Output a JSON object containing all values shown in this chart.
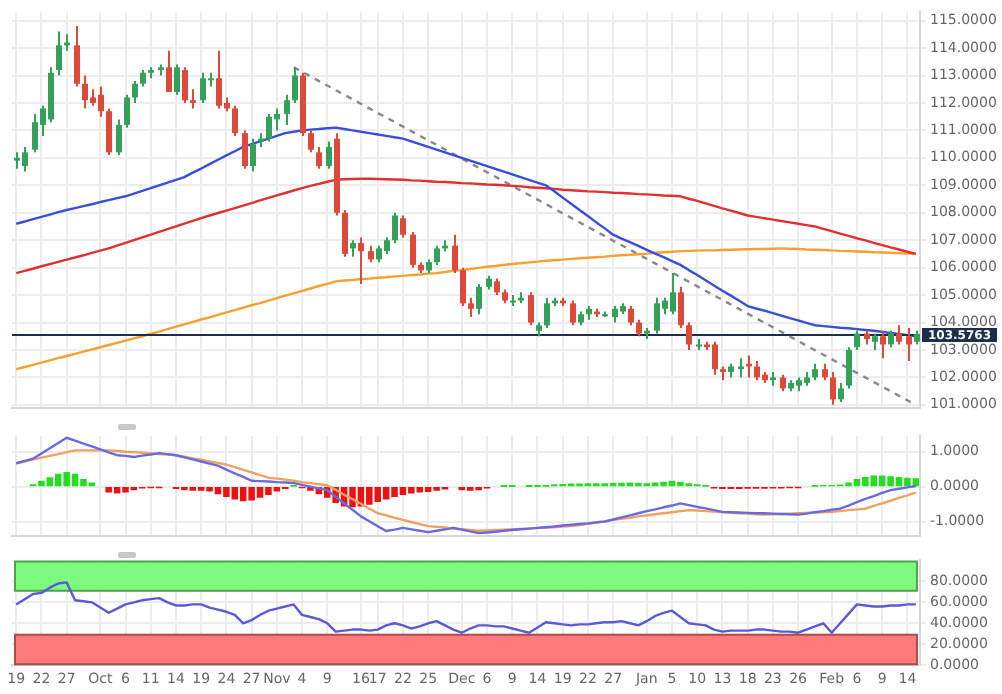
{
  "chart_data": [
    {
      "type": "candlestick",
      "categories": [
        null,
        null,
        null,
        null,
        null,
        null,
        null,
        null,
        null,
        null,
        null,
        null,
        null,
        null,
        null,
        null,
        null,
        null,
        null,
        null,
        null,
        null,
        null,
        null,
        null,
        null,
        null,
        null,
        null,
        null,
        null,
        null,
        null,
        null,
        null,
        null,
        null,
        null,
        null,
        null,
        null,
        null,
        null,
        null,
        null,
        null,
        null,
        null,
        null,
        null,
        null,
        null,
        null,
        null,
        null,
        null,
        null,
        null,
        null,
        null,
        null,
        null,
        null,
        null,
        null,
        null,
        null,
        null,
        null,
        null,
        null,
        null,
        null,
        null,
        null,
        null,
        null,
        null,
        null,
        null,
        null,
        null,
        null,
        null,
        null,
        null,
        null,
        null,
        null,
        null,
        null,
        null,
        null,
        null,
        null,
        null,
        null,
        null,
        null,
        null,
        null,
        null,
        null,
        null,
        null,
        null,
        null,
        null
      ],
      "ohlc": [
        [
          109.9,
          110.2,
          109.6,
          110.0
        ],
        [
          109.7,
          110.4,
          109.5,
          110.2
        ],
        [
          110.3,
          111.6,
          110.2,
          111.3
        ],
        [
          111.2,
          111.9,
          110.8,
          111.8
        ],
        [
          111.4,
          113.3,
          111.3,
          113.1
        ],
        [
          113.2,
          114.6,
          113.0,
          114.1
        ],
        [
          114.1,
          114.5,
          113.9,
          114.2
        ],
        [
          114.1,
          114.8,
          112.6,
          112.7
        ],
        [
          112.7,
          113.0,
          111.8,
          112.1
        ],
        [
          112.2,
          112.5,
          111.9,
          112.0
        ],
        [
          112.3,
          112.6,
          111.5,
          111.7
        ],
        [
          111.7,
          111.8,
          110.1,
          110.2
        ],
        [
          110.2,
          111.4,
          110.1,
          111.2
        ],
        [
          111.2,
          112.3,
          111.1,
          112.2
        ],
        [
          112.2,
          112.8,
          112.0,
          112.7
        ],
        [
          112.7,
          113.2,
          112.6,
          113.1
        ],
        [
          113.1,
          113.3,
          112.9,
          113.2
        ],
        [
          113.2,
          113.4,
          113.0,
          113.3
        ],
        [
          113.3,
          113.9,
          112.4,
          112.4
        ],
        [
          112.4,
          113.4,
          112.3,
          113.3
        ],
        [
          113.2,
          113.3,
          112.0,
          112.1
        ],
        [
          112.1,
          112.5,
          111.8,
          112.0
        ],
        [
          112.1,
          113.1,
          112.0,
          112.9
        ],
        [
          112.9,
          113.1,
          112.6,
          112.9
        ],
        [
          112.9,
          113.9,
          111.8,
          111.9
        ],
        [
          112.0,
          112.2,
          111.7,
          111.8
        ],
        [
          111.8,
          111.9,
          110.8,
          110.9
        ],
        [
          110.9,
          111.0,
          109.6,
          109.7
        ],
        [
          109.7,
          110.7,
          109.5,
          110.5
        ],
        [
          110.6,
          110.9,
          110.4,
          110.7
        ],
        [
          110.7,
          111.6,
          110.6,
          111.5
        ],
        [
          111.4,
          111.8,
          111.0,
          111.6
        ],
        [
          111.6,
          112.3,
          111.2,
          112.1
        ],
        [
          112.1,
          113.3,
          112.0,
          113.0
        ],
        [
          113.0,
          113.1,
          110.8,
          110.9
        ],
        [
          110.9,
          111.0,
          110.2,
          110.3
        ],
        [
          110.2,
          110.4,
          109.6,
          109.7
        ],
        [
          109.7,
          110.6,
          109.6,
          110.4
        ],
        [
          110.7,
          110.9,
          107.9,
          108.0
        ],
        [
          108.0,
          108.1,
          106.4,
          106.5
        ],
        [
          106.7,
          107.0,
          106.4,
          106.9
        ],
        [
          106.9,
          107.1,
          105.4,
          106.6
        ],
        [
          106.6,
          106.8,
          106.2,
          106.3
        ],
        [
          106.3,
          106.8,
          106.2,
          106.7
        ],
        [
          106.6,
          107.1,
          106.5,
          107.0
        ],
        [
          107.0,
          108.0,
          106.9,
          107.9
        ],
        [
          107.8,
          107.9,
          107.1,
          107.2
        ],
        [
          107.2,
          107.3,
          106.0,
          106.1
        ],
        [
          106.1,
          106.2,
          105.8,
          105.9
        ],
        [
          105.9,
          106.3,
          105.8,
          106.2
        ],
        [
          106.2,
          106.8,
          106.1,
          106.7
        ],
        [
          106.7,
          107.0,
          106.6,
          106.8
        ],
        [
          106.8,
          107.2,
          105.8,
          105.9
        ],
        [
          105.9,
          106.0,
          104.6,
          104.7
        ],
        [
          104.7,
          104.9,
          104.2,
          104.5
        ],
        [
          104.5,
          105.4,
          104.3,
          105.3
        ],
        [
          105.3,
          105.7,
          105.2,
          105.6
        ],
        [
          105.5,
          105.6,
          105.0,
          105.1
        ],
        [
          105.1,
          105.2,
          104.7,
          104.8
        ],
        [
          104.8,
          105.0,
          104.6,
          104.8
        ],
        [
          104.8,
          105.1,
          104.7,
          104.9
        ],
        [
          105.0,
          105.1,
          103.9,
          104.0
        ],
        [
          103.7,
          104.0,
          103.5,
          103.9
        ],
        [
          103.9,
          104.9,
          103.8,
          104.7
        ],
        [
          104.7,
          104.9,
          104.6,
          104.8
        ],
        [
          104.8,
          104.9,
          104.6,
          104.7
        ],
        [
          104.7,
          104.8,
          103.9,
          104.0
        ],
        [
          104.0,
          104.4,
          103.9,
          104.3
        ],
        [
          104.3,
          104.6,
          104.1,
          104.5
        ],
        [
          104.4,
          104.5,
          104.2,
          104.3
        ],
        [
          104.3,
          104.4,
          104.2,
          104.3
        ],
        [
          104.2,
          104.6,
          104.0,
          104.5
        ],
        [
          104.4,
          104.7,
          104.3,
          104.6
        ],
        [
          104.5,
          104.6,
          103.9,
          104.0
        ],
        [
          104.0,
          104.1,
          103.5,
          103.6
        ],
        [
          103.6,
          103.8,
          103.4,
          103.7
        ],
        [
          103.7,
          104.9,
          103.6,
          104.7
        ],
        [
          104.5,
          104.9,
          104.3,
          104.8
        ],
        [
          104.4,
          105.8,
          104.3,
          105.1
        ],
        [
          105.1,
          105.3,
          103.8,
          103.9
        ],
        [
          103.9,
          104.0,
          103.0,
          103.2
        ],
        [
          103.2,
          103.4,
          103.0,
          103.2
        ],
        [
          103.2,
          103.3,
          103.0,
          103.1
        ],
        [
          103.2,
          103.3,
          102.1,
          102.3
        ],
        [
          102.3,
          102.4,
          101.9,
          102.2
        ],
        [
          102.2,
          102.5,
          102.0,
          102.4
        ],
        [
          102.3,
          102.7,
          102.0,
          102.4
        ],
        [
          102.5,
          102.8,
          102.0,
          102.4
        ],
        [
          102.4,
          102.6,
          101.9,
          102.0
        ],
        [
          102.1,
          102.2,
          101.8,
          101.9
        ],
        [
          101.9,
          102.2,
          101.7,
          102.0
        ],
        [
          102.0,
          102.1,
          101.5,
          101.6
        ],
        [
          101.6,
          101.9,
          101.5,
          101.8
        ],
        [
          101.7,
          102.0,
          101.5,
          101.9
        ],
        [
          101.8,
          102.2,
          101.7,
          102.0
        ],
        [
          102.0,
          102.5,
          101.9,
          102.3
        ],
        [
          102.3,
          102.5,
          101.9,
          102.0
        ],
        [
          102.0,
          102.2,
          101.0,
          101.2
        ],
        [
          101.2,
          101.8,
          101.1,
          101.6
        ],
        [
          101.7,
          103.1,
          101.6,
          103.0
        ],
        [
          103.1,
          103.7,
          103.0,
          103.6
        ],
        [
          103.6,
          103.7,
          103.2,
          103.4
        ],
        [
          103.3,
          103.6,
          103.0,
          103.5
        ],
        [
          103.5,
          103.7,
          102.7,
          103.2
        ],
        [
          103.2,
          103.7,
          103.1,
          103.6
        ],
        [
          103.6,
          103.9,
          103.2,
          103.3
        ],
        [
          103.5,
          103.8,
          102.6,
          103.2
        ],
        [
          103.3,
          103.7,
          103.2,
          103.5763
        ]
      ],
      "series": [
        {
          "type": "line",
          "color": "#3a4fd8",
          "values": [
            107.6,
            107.68,
            107.77,
            107.85,
            107.93,
            108.02,
            108.1,
            108.17,
            108.24,
            108.31,
            108.39,
            108.46,
            108.53,
            108.6,
            108.7,
            108.8,
            108.9,
            109.0,
            109.1,
            109.2,
            109.3,
            109.46,
            109.61,
            109.77,
            109.93,
            110.09,
            110.24,
            110.4,
            110.5,
            110.6,
            110.7,
            110.8,
            110.9,
            110.95,
            111.0,
            111.03,
            111.05,
            111.08,
            111.1,
            111.05,
            111.0,
            110.95,
            110.9,
            110.85,
            110.8,
            110.75,
            110.7,
            110.6,
            110.5,
            110.4,
            110.3,
            110.2,
            110.1,
            110.0,
            109.9,
            109.8,
            109.7,
            109.6,
            109.5,
            109.4,
            109.3,
            109.2,
            109.1,
            109.0,
            108.78,
            108.55,
            108.33,
            108.1,
            107.88,
            107.65,
            107.43,
            107.2,
            107.06,
            106.93,
            106.79,
            106.65,
            106.51,
            106.38,
            106.24,
            106.1,
            105.91,
            105.73,
            105.54,
            105.35,
            105.16,
            104.98,
            104.79,
            104.6,
            104.51,
            104.43,
            104.34,
            104.25,
            104.16,
            104.08,
            103.99,
            103.9,
            103.87,
            103.84,
            103.81,
            103.79,
            103.76,
            103.73,
            103.7,
            103.66,
            103.62,
            103.58,
            103.54,
            103.5
          ]
        },
        {
          "type": "line",
          "color": "#e03030",
          "values": [
            105.8,
            105.88,
            105.96,
            106.05,
            106.13,
            106.21,
            106.29,
            106.37,
            106.45,
            106.54,
            106.62,
            106.7,
            106.8,
            106.9,
            107.0,
            107.1,
            107.2,
            107.3,
            107.4,
            107.5,
            107.6,
            107.7,
            107.8,
            107.9,
            107.99,
            108.08,
            108.17,
            108.26,
            108.35,
            108.45,
            108.54,
            108.63,
            108.72,
            108.81,
            108.9,
            108.98,
            109.05,
            109.13,
            109.2,
            109.22,
            109.23,
            109.24,
            109.24,
            109.23,
            109.22,
            109.21,
            109.2,
            109.18,
            109.17,
            109.15,
            109.13,
            109.12,
            109.1,
            109.08,
            109.07,
            109.05,
            109.03,
            109.02,
            109.0,
            108.98,
            108.96,
            108.93,
            108.91,
            108.89,
            108.87,
            108.84,
            108.82,
            108.8,
            108.78,
            108.77,
            108.75,
            108.73,
            108.72,
            108.7,
            108.68,
            108.67,
            108.65,
            108.63,
            108.62,
            108.6,
            108.51,
            108.43,
            108.34,
            108.25,
            108.16,
            108.08,
            107.99,
            107.9,
            107.85,
            107.8,
            107.75,
            107.7,
            107.65,
            107.6,
            107.55,
            107.5,
            107.41,
            107.33,
            107.24,
            107.16,
            107.07,
            106.99,
            106.9,
            106.82,
            106.74,
            106.66,
            106.58,
            106.5
          ]
        },
        {
          "type": "line",
          "color": "#f5a030",
          "values": [
            102.3,
            102.38,
            102.46,
            102.54,
            102.62,
            102.7,
            102.78,
            102.86,
            102.94,
            103.02,
            103.1,
            103.18,
            103.26,
            103.34,
            103.42,
            103.5,
            103.59,
            103.67,
            103.76,
            103.85,
            103.93,
            104.02,
            104.11,
            104.19,
            104.28,
            104.37,
            104.45,
            104.54,
            104.63,
            104.71,
            104.8,
            104.89,
            104.98,
            105.06,
            105.15,
            105.24,
            105.33,
            105.41,
            105.5,
            105.53,
            105.55,
            105.58,
            105.6,
            105.63,
            105.65,
            105.68,
            105.7,
            105.73,
            105.75,
            105.78,
            105.8,
            105.84,
            105.88,
            105.91,
            105.95,
            105.99,
            106.03,
            106.06,
            106.1,
            106.13,
            106.16,
            106.19,
            106.22,
            106.25,
            106.27,
            106.29,
            106.32,
            106.34,
            106.36,
            106.38,
            106.4,
            106.43,
            106.45,
            106.47,
            106.49,
            106.51,
            106.54,
            106.56,
            106.58,
            106.6,
            106.61,
            106.62,
            106.63,
            106.63,
            106.64,
            106.65,
            106.66,
            106.67,
            106.68,
            106.68,
            106.69,
            106.7,
            106.69,
            106.68,
            106.66,
            106.65,
            106.64,
            106.63,
            106.61,
            106.6,
            106.59,
            106.58,
            106.56,
            106.55,
            106.54,
            106.53,
            106.51,
            106.5
          ]
        },
        {
          "type": "line",
          "color": "#888888",
          "line_style": "dashed",
          "values": [
            null,
            null,
            null,
            null,
            null,
            null,
            null,
            null,
            null,
            null,
            null,
            null,
            null,
            null,
            null,
            null,
            null,
            null,
            null,
            null,
            null,
            null,
            null,
            null,
            null,
            null,
            null,
            null,
            null,
            null,
            null,
            null,
            null,
            113.3,
            null,
            null,
            null,
            null,
            null,
            null,
            null,
            null,
            null,
            null,
            null,
            null,
            null,
            null,
            null,
            null,
            null,
            null,
            null,
            null,
            null,
            null,
            null,
            null,
            null,
            null,
            null,
            null,
            null,
            null,
            null,
            null,
            null,
            null,
            null,
            null,
            null,
            null,
            null,
            null,
            null,
            null,
            null,
            null,
            null,
            null,
            null,
            null,
            null,
            null,
            null,
            null,
            null,
            null,
            null,
            null,
            null,
            null,
            null,
            null,
            null,
            null,
            null,
            null,
            null,
            null,
            null,
            null,
            null,
            null,
            null,
            null,
            null,
            101.0
          ]
        }
      ],
      "ylim": [
        100.9,
        115.3
      ],
      "yticks": [
        {
          "value": 101,
          "label": "101.0000"
        },
        {
          "value": 102,
          "label": "102.0000"
        },
        {
          "value": 103,
          "label": "103.0000"
        },
        {
          "value": 104,
          "label": "104.0000"
        },
        {
          "value": 105,
          "label": "105.0000"
        },
        {
          "value": 106,
          "label": "106.0000"
        },
        {
          "value": 107,
          "label": "107.0000"
        },
        {
          "value": 108,
          "label": "108.0000"
        },
        {
          "value": 109,
          "label": "109.0000"
        },
        {
          "value": 110,
          "label": "110.0000"
        },
        {
          "value": 111,
          "label": "111.0000"
        },
        {
          "value": 112,
          "label": "112.0000"
        },
        {
          "value": 113,
          "label": "113.0000"
        },
        {
          "value": 114,
          "label": "114.0000"
        },
        {
          "value": 115,
          "label": "115.0000"
        }
      ],
      "ref_lines": [
        {
          "axis": "y",
          "value": 103.5763,
          "label": "103.5763",
          "color": "#1f2d4d"
        }
      ],
      "grid": true,
      "tick_labels": "y"
    },
    {
      "type": "bar",
      "categories": [
        null,
        null,
        null,
        null,
        null,
        null,
        null,
        null,
        null,
        null,
        null,
        null,
        null,
        null,
        null,
        null,
        null,
        null,
        null,
        null,
        null,
        null,
        null,
        null,
        null,
        null,
        null,
        null,
        null,
        null,
        null,
        null,
        null,
        null,
        null,
        null,
        null,
        null,
        null,
        null,
        null,
        null,
        null,
        null,
        null,
        null,
        null,
        null,
        null,
        null,
        null,
        null,
        null,
        null,
        null,
        null,
        null,
        null,
        null,
        null,
        null,
        null,
        null,
        null,
        null,
        null,
        null,
        null,
        null,
        null,
        null,
        null,
        null,
        null,
        null,
        null,
        null,
        null,
        null,
        null,
        null,
        null,
        null,
        null,
        null,
        null,
        null,
        null,
        null,
        null,
        null,
        null,
        null,
        null,
        null,
        null,
        null,
        null,
        null,
        null,
        null,
        null,
        null,
        null,
        null,
        null,
        null,
        null
      ],
      "series": [
        {
          "type": "bar",
          "color": "#22dd22",
          "values": [
            null,
            null,
            0.05,
            0.15,
            0.25,
            0.35,
            0.4,
            0.35,
            0.2,
            0.1,
            null,
            null,
            null,
            null,
            null,
            null,
            null,
            null,
            null,
            null,
            null,
            null,
            null,
            null,
            null,
            null,
            null,
            null,
            null,
            null,
            null,
            null,
            null,
            0.02,
            null,
            null,
            null,
            null,
            null,
            null,
            null,
            null,
            null,
            null,
            null,
            null,
            null,
            null,
            null,
            null,
            null,
            null,
            null,
            null,
            null,
            null,
            null,
            null,
            0.01,
            0.01,
            null,
            0.01,
            0.01,
            0.02,
            0.05,
            0.06,
            0.07,
            0.07,
            0.08,
            0.08,
            0.08,
            0.09,
            0.09,
            0.1,
            0.09,
            0.08,
            0.1,
            0.12,
            0.15,
            0.12,
            0.08,
            0.05,
            0.02,
            null,
            null,
            null,
            null,
            null,
            null,
            null,
            null,
            null,
            null,
            null,
            null,
            0.02,
            0.03,
            0.03,
            0.04,
            0.1,
            0.2,
            0.26,
            0.3,
            0.3,
            0.28,
            0.26,
            0.24,
            0.22
          ]
        },
        {
          "type": "bar",
          "color": "#ee1111",
          "values": [
            null,
            null,
            null,
            null,
            null,
            null,
            null,
            null,
            null,
            null,
            null,
            -0.15,
            -0.18,
            -0.15,
            -0.08,
            -0.03,
            -0.02,
            -0.02,
            null,
            -0.05,
            -0.08,
            -0.1,
            -0.1,
            -0.12,
            -0.2,
            -0.28,
            -0.35,
            -0.4,
            -0.38,
            -0.3,
            -0.22,
            -0.12,
            -0.05,
            null,
            -0.02,
            -0.1,
            -0.2,
            -0.3,
            -0.45,
            -0.55,
            -0.57,
            -0.55,
            -0.5,
            -0.42,
            -0.35,
            -0.28,
            -0.22,
            -0.18,
            -0.15,
            -0.13,
            -0.1,
            -0.06,
            null,
            -0.08,
            -0.1,
            -0.08,
            -0.03,
            null,
            null,
            null,
            null,
            null,
            null,
            null,
            null,
            null,
            null,
            null,
            null,
            null,
            null,
            null,
            null,
            null,
            null,
            null,
            null,
            null,
            null,
            null,
            null,
            null,
            null,
            -0.03,
            -0.05,
            -0.05,
            -0.05,
            -0.04,
            -0.04,
            -0.04,
            -0.03,
            -0.03,
            -0.02,
            -0.02,
            null,
            null,
            null,
            null,
            null,
            null,
            null,
            null,
            null,
            null,
            null,
            null,
            null,
            null
          ]
        },
        {
          "type": "line",
          "color": "#6a6ae0",
          "values": [
            0.67,
            0.74,
            0.8,
            0.95,
            1.1,
            1.25,
            1.4,
            1.32,
            1.23,
            1.15,
            1.07,
            0.98,
            0.9,
            0.88,
            0.85,
            0.89,
            0.92,
            0.96,
            0.93,
            0.9,
            0.84,
            0.78,
            0.72,
            0.66,
            0.6,
            0.49,
            0.38,
            0.28,
            0.17,
            0.16,
            0.15,
            0.13,
            0.12,
            0.1,
            0.05,
            0.0,
            -0.05,
            -0.1,
            -0.29,
            -0.48,
            -0.66,
            -0.85,
            -0.99,
            -1.13,
            -1.27,
            -1.23,
            -1.18,
            -1.22,
            -1.26,
            -1.3,
            -1.26,
            -1.22,
            -1.18,
            -1.23,
            -1.28,
            -1.33,
            -1.31,
            -1.29,
            -1.26,
            -1.24,
            -1.22,
            -1.2,
            -1.18,
            -1.16,
            -1.14,
            -1.11,
            -1.09,
            -1.07,
            -1.05,
            -1.02,
            -1.0,
            -0.94,
            -0.88,
            -0.82,
            -0.76,
            -0.7,
            -0.65,
            -0.59,
            -0.54,
            -0.48,
            -0.53,
            -0.58,
            -0.62,
            -0.67,
            -0.72,
            -0.73,
            -0.74,
            -0.75,
            -0.76,
            -0.76,
            -0.77,
            -0.78,
            -0.79,
            -0.8,
            -0.77,
            -0.73,
            -0.7,
            -0.66,
            -0.63,
            -0.54,
            -0.44,
            -0.35,
            -0.27,
            -0.18,
            -0.1,
            -0.06,
            -0.02,
            0.02
          ]
        },
        {
          "type": "line",
          "color": "#f0a060",
          "values": [
            0.67,
            0.72,
            0.78,
            0.83,
            0.88,
            0.93,
            0.99,
            1.04,
            1.04,
            1.04,
            1.04,
            1.04,
            1.02,
            1.0,
            0.99,
            0.97,
            0.95,
            0.93,
            0.92,
            0.9,
            0.86,
            0.81,
            0.77,
            0.72,
            0.68,
            0.63,
            0.56,
            0.48,
            0.41,
            0.33,
            0.26,
            0.23,
            0.2,
            0.17,
            0.13,
            0.1,
            0.07,
            0.04,
            -0.09,
            -0.23,
            -0.36,
            -0.49,
            -0.63,
            -0.76,
            -0.82,
            -0.89,
            -0.95,
            -1.01,
            -1.07,
            -1.13,
            -1.15,
            -1.17,
            -1.2,
            -1.22,
            -1.24,
            -1.26,
            -1.25,
            -1.24,
            -1.23,
            -1.22,
            -1.21,
            -1.2,
            -1.18,
            -1.17,
            -1.16,
            -1.14,
            -1.13,
            -1.1,
            -1.06,
            -1.03,
            -0.99,
            -0.95,
            -0.92,
            -0.89,
            -0.85,
            -0.82,
            -0.79,
            -0.76,
            -0.73,
            -0.7,
            -0.67,
            -0.68,
            -0.7,
            -0.71,
            -0.73,
            -0.74,
            -0.76,
            -0.77,
            -0.79,
            -0.8,
            -0.79,
            -0.78,
            -0.77,
            -0.76,
            -0.75,
            -0.74,
            -0.73,
            -0.72,
            -0.7,
            -0.67,
            -0.65,
            -0.63,
            -0.55,
            -0.48,
            -0.4,
            -0.32,
            -0.25,
            -0.17
          ]
        }
      ],
      "ylim": [
        -1.4,
        1.45
      ],
      "yticks": [
        {
          "value": -1,
          "label": "-1.0000"
        },
        {
          "value": 0,
          "label": "0.0000"
        },
        {
          "value": 1,
          "label": "1.0000"
        }
      ],
      "grid": true,
      "tick_labels": "y"
    },
    {
      "type": "line",
      "categories": [
        "19",
        null,
        null,
        "22",
        null,
        null,
        "27",
        null,
        null,
        null,
        "Oct",
        null,
        null,
        "6",
        null,
        null,
        "11",
        null,
        null,
        "14",
        null,
        null,
        "19",
        null,
        null,
        "24",
        null,
        null,
        "27",
        null,
        null,
        "Nov",
        null,
        null,
        "4",
        null,
        null,
        "9",
        null,
        null,
        null,
        "16",
        null,
        "17",
        null,
        null,
        "22",
        null,
        null,
        "25",
        null,
        null,
        null,
        "Dec",
        null,
        null,
        "6",
        null,
        null,
        "9",
        null,
        null,
        "14",
        null,
        null,
        "19",
        null,
        null,
        "22",
        null,
        null,
        "27",
        null,
        null,
        null,
        "Jan",
        null,
        null,
        "5",
        null,
        null,
        "10",
        null,
        null,
        "13",
        null,
        null,
        "18",
        null,
        null,
        "23",
        null,
        null,
        "26",
        null,
        null,
        null,
        "Feb",
        null,
        null,
        "6",
        null,
        null,
        "9",
        null,
        null,
        "14",
        null
      ],
      "series": [
        {
          "color": "#5a5ad8",
          "values": [
            58,
            63,
            68,
            69,
            74,
            78,
            79,
            62,
            61,
            60,
            55,
            50,
            54,
            58,
            60,
            62,
            63,
            64,
            60,
            57,
            57,
            58,
            58,
            55,
            53,
            51,
            48,
            40,
            43,
            48,
            52,
            54,
            56,
            58,
            48,
            46,
            44,
            40,
            32,
            33,
            34,
            34,
            33,
            34,
            38,
            40,
            38,
            35,
            37,
            40,
            42,
            38,
            34,
            31,
            35,
            38,
            38,
            37,
            37,
            35,
            33,
            31,
            36,
            41,
            40,
            39,
            38,
            39,
            39,
            40,
            41,
            41,
            42,
            40,
            38,
            42,
            47,
            50,
            52,
            46,
            40,
            39,
            38,
            34,
            32,
            33,
            33,
            33,
            34,
            34,
            33,
            32,
            32,
            31,
            34,
            37,
            40,
            31,
            40,
            49,
            58,
            57,
            56,
            56,
            57,
            57,
            58,
            58
          ]
        }
      ],
      "ylim": [
        0,
        100
      ],
      "yticks": [
        {
          "value": 0,
          "label": "0.0000"
        },
        {
          "value": 20,
          "label": "20.0000"
        },
        {
          "value": 40,
          "label": "40.0000"
        },
        {
          "value": 60,
          "label": "60.0000"
        },
        {
          "value": 80,
          "label": "80.0000"
        }
      ],
      "bands": [
        {
          "axis": "y",
          "from": 70,
          "to": 100,
          "color": "#7dfa7d"
        },
        {
          "axis": "y",
          "from": 0,
          "to": 30,
          "color": "#ff7b7b"
        }
      ],
      "grid": true
    }
  ]
}
